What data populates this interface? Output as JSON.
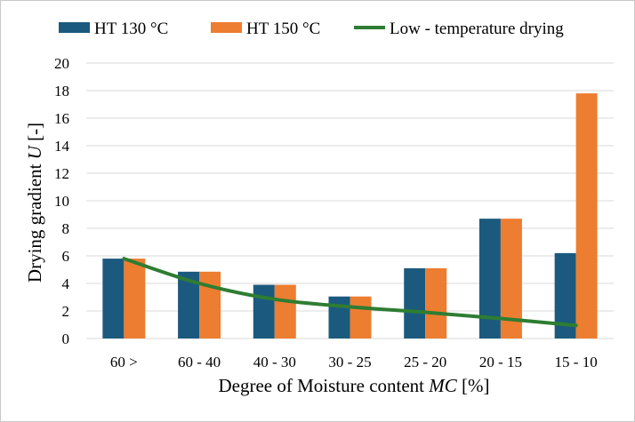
{
  "chart_data": {
    "type": "bar",
    "title": "",
    "xlabel_prefix": "Degree of Moisture content ",
    "xlabel_var": "MC",
    "xlabel_suffix": " [%]",
    "ylabel_prefix": "Drying gradient  ",
    "ylabel_var": "U",
    "ylabel_suffix": " [-]",
    "ylim": [
      0,
      20
    ],
    "yticks": [
      "0",
      "2",
      "4",
      "6",
      "8",
      "10",
      "12",
      "14",
      "16",
      "18",
      "20"
    ],
    "grid": true,
    "legend_position": "top",
    "categories": [
      "60 >",
      "60 - 40",
      "40 - 30",
      "30 - 25",
      "25 - 20",
      "20 - 15",
      "15 - 10"
    ],
    "series": [
      {
        "name": "HT 130 °C",
        "type": "bar",
        "color": "#1b5a7e",
        "values": [
          5.8,
          4.85,
          3.9,
          3.05,
          5.1,
          8.7,
          6.2
        ]
      },
      {
        "name": "HT 150 °C",
        "type": "bar",
        "color": "#ed7d31",
        "values": [
          5.8,
          4.85,
          3.9,
          3.05,
          5.1,
          8.7,
          17.8
        ]
      },
      {
        "name": "Low - temperature drying",
        "type": "line",
        "color": "#2e7d32",
        "values": [
          5.8,
          4.0,
          2.85,
          2.3,
          1.9,
          1.45,
          0.95
        ]
      }
    ]
  }
}
